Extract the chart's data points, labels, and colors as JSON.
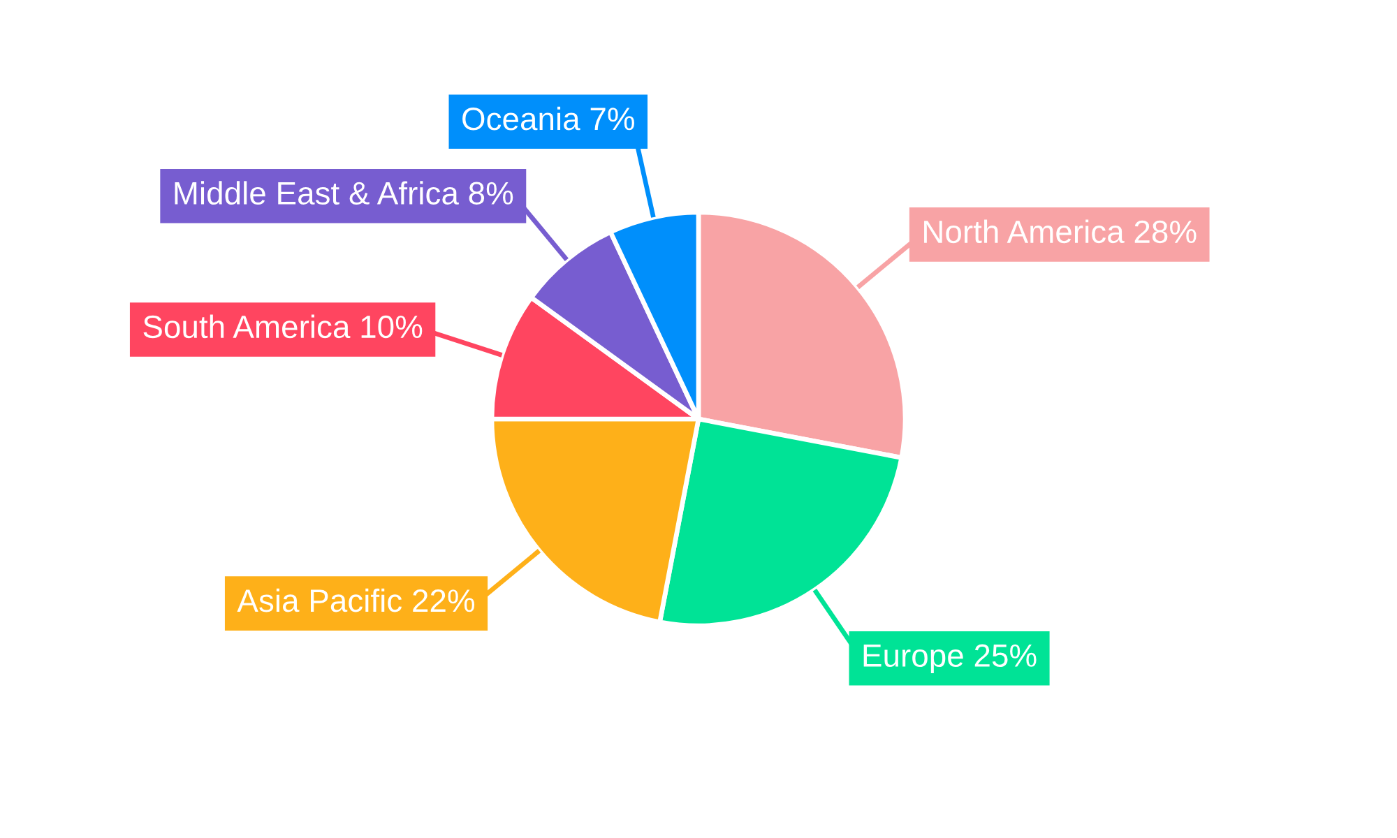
{
  "chart_data": {
    "type": "pie",
    "categories": [
      "North America",
      "Europe",
      "Asia Pacific",
      "South America",
      "Middle East & Africa",
      "Oceania"
    ],
    "values": [
      28,
      25,
      22,
      10,
      8,
      7
    ],
    "value_labels": [
      "28%",
      "25%",
      "22%",
      "10%",
      "8%",
      "7%"
    ],
    "colors": [
      "#f8a3a5",
      "#00e396",
      "#feb019",
      "#ff4560",
      "#775dd0",
      "#008ffb"
    ],
    "legend": false
  }
}
